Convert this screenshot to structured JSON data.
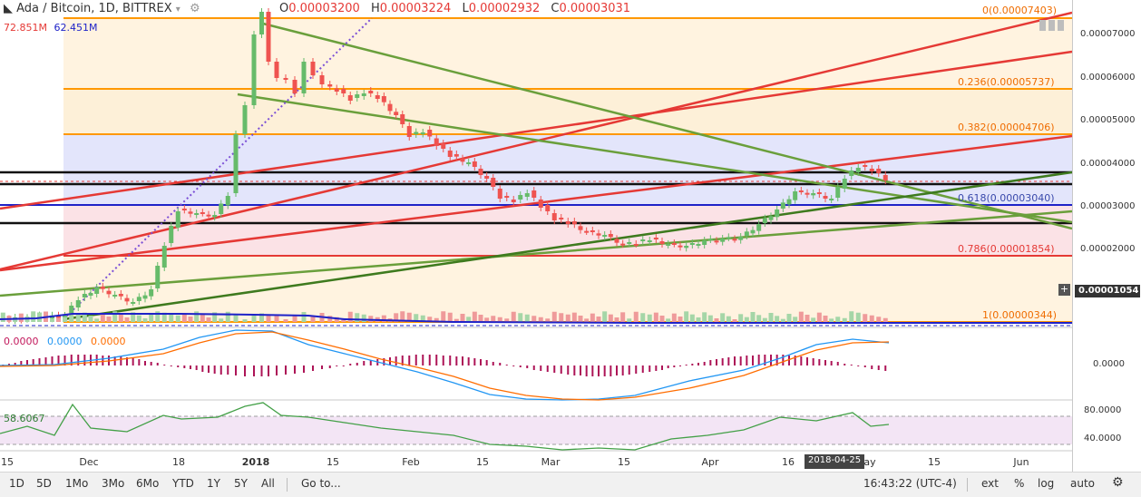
{
  "header": {
    "symbol_label": "Ada / Bitcoin, 1D, BITTREX",
    "ohlc": [
      {
        "key": "O",
        "value": "0.00003200"
      },
      {
        "key": "H",
        "value": "0.00003224"
      },
      {
        "key": "L",
        "value": "0.00002932"
      },
      {
        "key": "C",
        "value": "0.00003031"
      }
    ],
    "volume_values": [
      "72.851M",
      "62.451M"
    ]
  },
  "macd_legend": [
    "0.0000",
    "0.0000",
    "0.0000"
  ],
  "rsi_legend": "58.6067",
  "fib_levels": [
    {
      "label": "0(0.00007403)",
      "price": 7.403e-05
    },
    {
      "label": "0.236(0.00005737)",
      "price": 5.737e-05
    },
    {
      "label": "0.382(0.00004706)",
      "price": 4.706e-05
    },
    {
      "label": "0.618(0.00003040)",
      "price": 3.04e-05
    },
    {
      "label": "0.786(0.00001854)",
      "price": 1.854e-05
    },
    {
      "label": "1(0.00000344)",
      "price": 3.44e-06
    }
  ],
  "price_axis": [
    "0.00007000",
    "0.00006000",
    "0.00005000",
    "0.00004000",
    "0.00003000",
    "0.00002000"
  ],
  "last_price": "0.00001054",
  "macd_axis": "0.0000",
  "rsi_axis": [
    "80.0000",
    "40.0000"
  ],
  "date_axis": [
    "15",
    "Dec",
    "18",
    "2018",
    "15",
    "Feb",
    "15",
    "Mar",
    "15",
    "Apr",
    "16",
    "ay",
    "15",
    "Jun"
  ],
  "date_cursor": "2018-04-25",
  "toolbar": {
    "ranges": [
      "1D",
      "5D",
      "1Mo",
      "3Mo",
      "6Mo",
      "YTD",
      "1Y",
      "5Y",
      "All"
    ],
    "goto": "Go to...",
    "time": "16:43:22 (UTC-4)",
    "right": [
      "ext",
      "%",
      "log",
      "auto"
    ]
  },
  "colors": {
    "fib_orange": "#ff9800",
    "trend_red": "#e53935",
    "trend_green": "#6a9f3b",
    "candle_up": "#66bb6a",
    "candle_down": "#ef5350"
  }
}
